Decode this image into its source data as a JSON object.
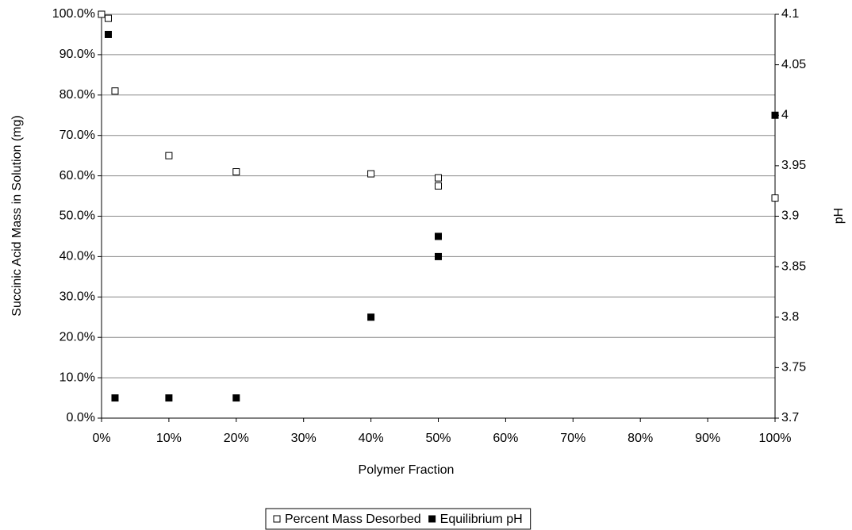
{
  "chart_data": {
    "type": "scatter",
    "x_label": "Polymer Fraction",
    "y_label": "Succinic Acid Mass in Solution (mg)",
    "y2_label": "pH",
    "xlim": [
      0,
      100
    ],
    "xticks": [
      {
        "value": 0,
        "label": "0%"
      },
      {
        "value": 10,
        "label": "10%"
      },
      {
        "value": 20,
        "label": "20%"
      },
      {
        "value": 30,
        "label": "30%"
      },
      {
        "value": 40,
        "label": "40%"
      },
      {
        "value": 50,
        "label": "50%"
      },
      {
        "value": 60,
        "label": "60%"
      },
      {
        "value": 70,
        "label": "70%"
      },
      {
        "value": 80,
        "label": "80%"
      },
      {
        "value": 90,
        "label": "90%"
      },
      {
        "value": 100,
        "label": "100%"
      }
    ],
    "ylim": [
      0,
      100
    ],
    "yticks": [
      {
        "value": 0,
        "label": "0.0%"
      },
      {
        "value": 10,
        "label": "10.0%"
      },
      {
        "value": 20,
        "label": "20.0%"
      },
      {
        "value": 30,
        "label": "30.0%"
      },
      {
        "value": 40,
        "label": "40.0%"
      },
      {
        "value": 50,
        "label": "50.0%"
      },
      {
        "value": 60,
        "label": "60.0%"
      },
      {
        "value": 70,
        "label": "70.0%"
      },
      {
        "value": 80,
        "label": "80.0%"
      },
      {
        "value": 90,
        "label": "90.0%"
      },
      {
        "value": 100,
        "label": "100.0%"
      }
    ],
    "y2lim": [
      3.7,
      4.1
    ],
    "y2ticks": [
      3.7,
      3.75,
      3.8,
      3.85,
      3.9,
      3.95,
      4,
      4.05,
      4.1
    ],
    "grid": true,
    "legend": "bottom",
    "series": [
      {
        "name": "Percent Mass Desorbed",
        "color": "#ffffff",
        "x": [
          0,
          1,
          2,
          10,
          20,
          40,
          50,
          50,
          100
        ],
        "values": [
          100,
          99,
          81,
          65,
          61,
          60.5,
          59.5,
          57.5,
          54.5
        ]
      },
      {
        "name": "Equilibrium pH",
        "color": "#000000",
        "axis": "y2",
        "x": [
          1,
          2,
          10,
          20,
          40,
          50,
          50,
          100
        ],
        "values": [
          4.08,
          3.72,
          3.72,
          3.72,
          3.8,
          3.88,
          3.86,
          4.0
        ]
      }
    ]
  }
}
